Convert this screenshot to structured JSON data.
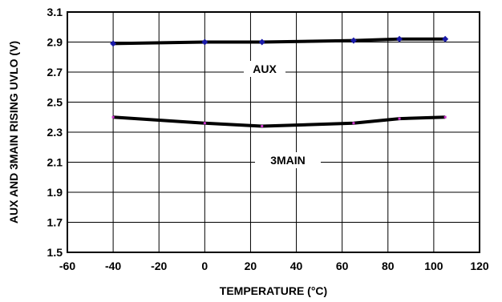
{
  "chart_data": {
    "type": "line",
    "xlabel": "TEMPERATURE (°C)",
    "ylabel": "AUX AND 3MAIN RISING UVLO (V)",
    "xlim": [
      -60,
      120
    ],
    "ylim": [
      1.5,
      3.1
    ],
    "x_ticks": [
      "-60",
      "-40",
      "-20",
      "0",
      "20",
      "40",
      "60",
      "80",
      "100",
      "120"
    ],
    "y_ticks": [
      "1.5",
      "1.7",
      "1.9",
      "2.1",
      "2.3",
      "2.5",
      "2.7",
      "2.9",
      "3.1"
    ],
    "grid": true,
    "series": [
      {
        "name": "AUX",
        "color": "#000000",
        "marker_color": "#1a1aa8",
        "x": [
          -40,
          0,
          25,
          65,
          85,
          105
        ],
        "y": [
          2.89,
          2.9,
          2.9,
          2.91,
          2.92,
          2.92
        ]
      },
      {
        "name": "3MAIN",
        "color": "#000000",
        "marker_color": "#cc33cc",
        "x": [
          -40,
          0,
          25,
          65,
          85,
          105
        ],
        "y": [
          2.4,
          2.36,
          2.34,
          2.36,
          2.39,
          2.4
        ]
      }
    ]
  }
}
